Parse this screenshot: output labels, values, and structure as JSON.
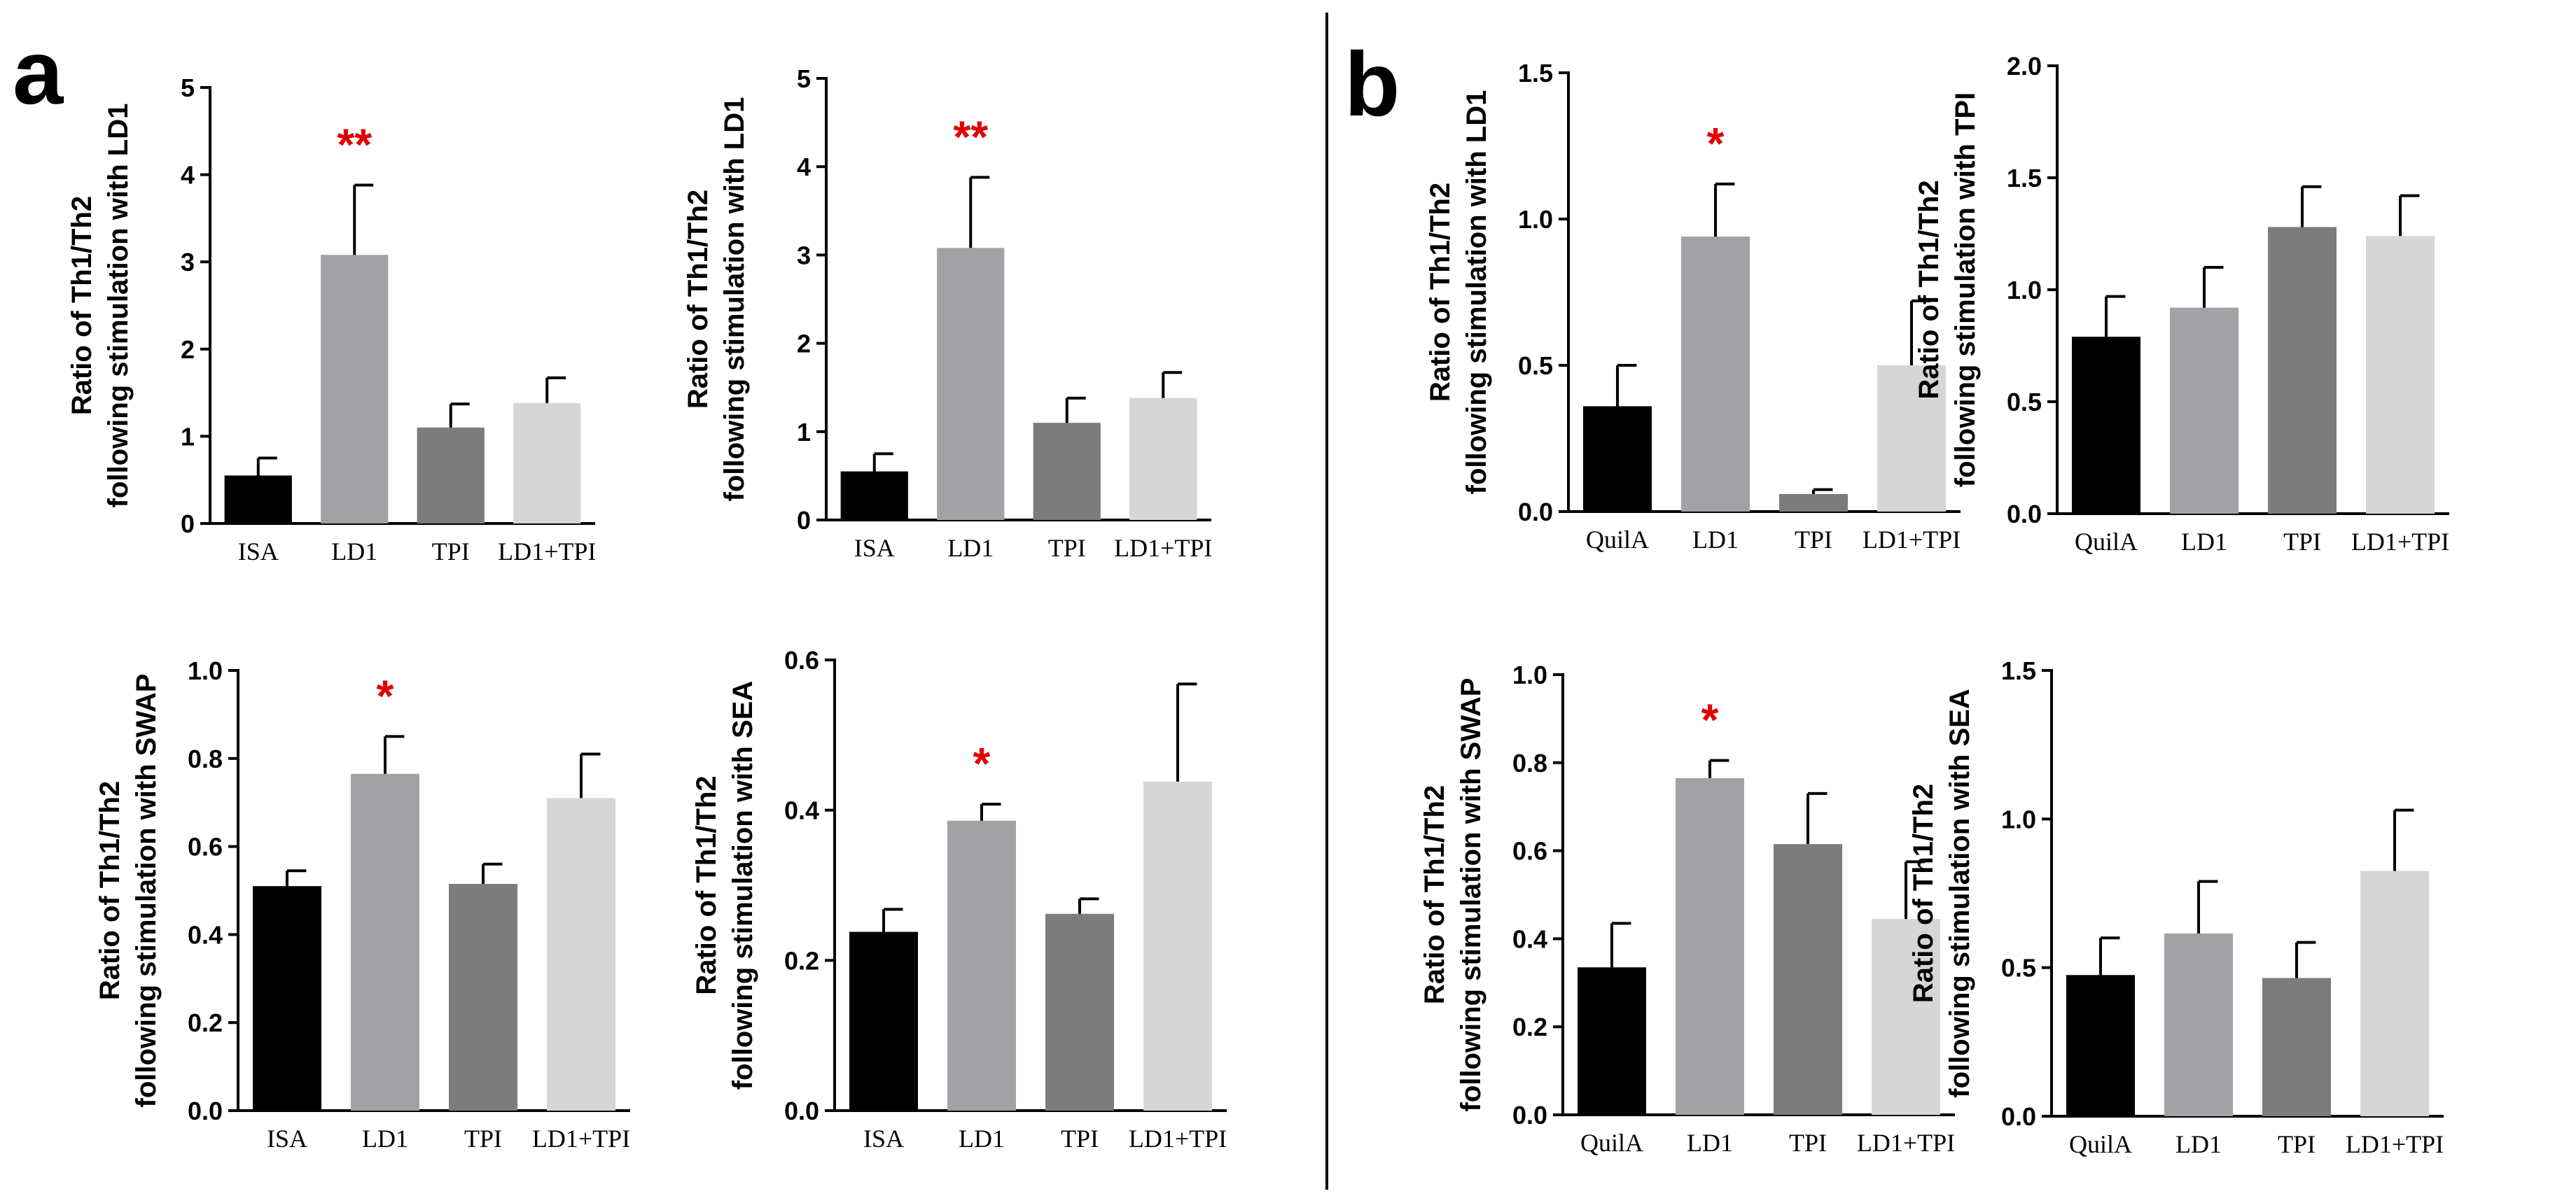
{
  "figure": {
    "panel_letters": [
      "a",
      "b"
    ]
  },
  "chart_data": [
    {
      "type": "bar",
      "panel": "a",
      "categories": [
        "ISA",
        "LD1",
        "TPI",
        "LD1+TPI"
      ],
      "values": [
        0.55,
        3.08,
        1.1,
        1.38
      ],
      "errors": [
        0.2,
        0.8,
        0.27,
        0.29
      ],
      "significance": [
        "",
        "**",
        "",
        ""
      ],
      "ylabel": [
        "Ratio of Th1/Th2",
        "following stimulation with LD1"
      ],
      "ylim": [
        0,
        5
      ],
      "yticks": [
        "0",
        "1",
        "2",
        "3",
        "4",
        "5"
      ],
      "colors": [
        "#000000",
        "#a2a2a6",
        "#7c7c7c",
        "#d6d6d6"
      ]
    },
    {
      "type": "bar",
      "panel": "a",
      "categories": [
        "ISA",
        "LD1",
        "TPI",
        "LD1+TPI"
      ],
      "values": [
        0.55,
        3.08,
        1.1,
        1.38
      ],
      "errors": [
        0.2,
        0.8,
        0.28,
        0.29
      ],
      "significance": [
        "",
        "**",
        "",
        ""
      ],
      "ylabel": [
        "Ratio of Th1/Th2",
        "following stimulation with LD1"
      ],
      "ylim": [
        0,
        5
      ],
      "yticks": [
        "0",
        "1",
        "2",
        "3",
        "4",
        "5"
      ],
      "colors": [
        "#000000",
        "#a2a2a6",
        "#7c7c7c",
        "#d6d6d6"
      ]
    },
    {
      "type": "bar",
      "panel": "a",
      "categories": [
        "ISA",
        "LD1",
        "TPI",
        "LD1+TPI"
      ],
      "values": [
        0.51,
        0.765,
        0.515,
        0.71
      ],
      "errors": [
        0.035,
        0.085,
        0.045,
        0.1
      ],
      "significance": [
        "",
        "*",
        "",
        ""
      ],
      "ylabel": [
        "Ratio of Th1/Th2",
        "following stimulation with SWAP"
      ],
      "ylim": [
        0,
        1.0
      ],
      "yticks": [
        "0.0",
        "0.2",
        "0.4",
        "0.6",
        "0.8",
        "1.0"
      ],
      "colors": [
        "#000000",
        "#a2a2a6",
        "#7c7c7c",
        "#d6d6d6"
      ]
    },
    {
      "type": "bar",
      "panel": "a",
      "categories": [
        "ISA",
        "LD1",
        "TPI",
        "LD1+TPI"
      ],
      "values": [
        0.238,
        0.386,
        0.262,
        0.438
      ],
      "errors": [
        0.03,
        0.022,
        0.02,
        0.13
      ],
      "significance": [
        "",
        "*",
        "",
        ""
      ],
      "ylabel": [
        "Ratio of Th1/Th2",
        "following stimulation with SEA"
      ],
      "ylim": [
        0,
        0.6
      ],
      "yticks": [
        "0.0",
        "0.2",
        "0.4",
        "0.6"
      ],
      "colors": [
        "#000000",
        "#a2a2a6",
        "#7c7c7c",
        "#d6d6d6"
      ]
    },
    {
      "type": "bar",
      "panel": "b",
      "categories": [
        "QuilA",
        "LD1",
        "TPI",
        "LD1+TPI"
      ],
      "values": [
        0.36,
        0.94,
        0.06,
        0.5
      ],
      "errors": [
        0.14,
        0.18,
        0.015,
        0.22
      ],
      "significance": [
        "",
        "*",
        "",
        ""
      ],
      "ylabel": [
        "Ratio of Th1/Th2",
        "following stimulation with LD1"
      ],
      "ylim": [
        0,
        1.5
      ],
      "yticks": [
        "0.0",
        "0.5",
        "1.0",
        "1.5"
      ],
      "colors": [
        "#000000",
        "#a2a2a6",
        "#7c7c7c",
        "#d6d6d6"
      ]
    },
    {
      "type": "bar",
      "panel": "b",
      "categories": [
        "QuilA",
        "LD1",
        "TPI",
        "LD1+TPI"
      ],
      "values": [
        0.79,
        0.92,
        1.28,
        1.24
      ],
      "errors": [
        0.18,
        0.18,
        0.18,
        0.18
      ],
      "significance": [
        "",
        "",
        "",
        ""
      ],
      "ylabel": [
        "Ratio of Th1/Th2",
        "following stimulation with TPI"
      ],
      "ylim": [
        0,
        2.0
      ],
      "yticks": [
        "0.0",
        "0.5",
        "1.0",
        "1.5",
        "2.0"
      ],
      "colors": [
        "#000000",
        "#a2a2a6",
        "#7c7c7c",
        "#d6d6d6"
      ]
    },
    {
      "type": "bar",
      "panel": "b",
      "categories": [
        "QuilA",
        "LD1",
        "TPI",
        "LD1+TPI"
      ],
      "values": [
        0.335,
        0.765,
        0.615,
        0.445
      ],
      "errors": [
        0.1,
        0.04,
        0.115,
        0.13
      ],
      "significance": [
        "",
        "*",
        "",
        ""
      ],
      "ylabel": [
        "Ratio of Th1/Th2",
        "following stimulation with SWAP"
      ],
      "ylim": [
        0,
        1.0
      ],
      "yticks": [
        "0.0",
        "0.2",
        "0.4",
        "0.6",
        "0.8",
        "1.0"
      ],
      "colors": [
        "#000000",
        "#a2a2a6",
        "#7c7c7c",
        "#d6d6d6"
      ]
    },
    {
      "type": "bar",
      "panel": "b",
      "categories": [
        "QuilA",
        "LD1",
        "TPI",
        "LD1+TPI"
      ],
      "values": [
        0.475,
        0.615,
        0.465,
        0.825
      ],
      "errors": [
        0.125,
        0.175,
        0.12,
        0.205
      ],
      "significance": [
        "",
        "",
        "",
        ""
      ],
      "ylabel": [
        "Ratio of Th1/Th2",
        "following stimulation with SEA"
      ],
      "ylim": [
        0,
        1.5
      ],
      "yticks": [
        "0.0",
        "0.5",
        "1.0",
        "1.5"
      ],
      "colors": [
        "#000000",
        "#a2a2a6",
        "#7c7c7c",
        "#d6d6d6"
      ]
    }
  ]
}
